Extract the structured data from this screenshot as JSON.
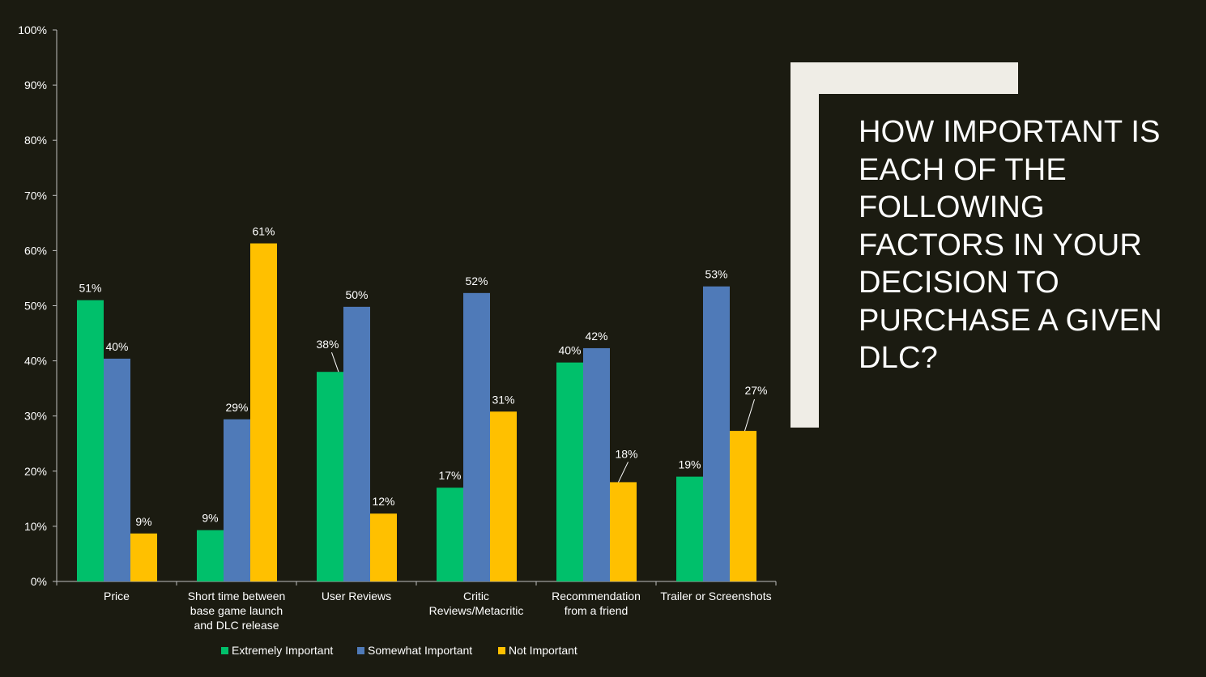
{
  "slide": {
    "title": "HOW IMPORTANT IS EACH OF THE FOLLOWING FACTORS IN YOUR DECISION TO PURCHASE A GIVEN DLC?"
  },
  "colors": {
    "background": "#1b1b11",
    "frame": "#efede6",
    "extremely_important": "#00c06b",
    "somewhat_important": "#4f7ab8",
    "not_important": "#ffc000",
    "axis": "#bfbfbf",
    "text": "#ffffff"
  },
  "chart_data": {
    "type": "bar",
    "title": "",
    "xlabel": "",
    "ylabel": "",
    "ylim": [
      0,
      100
    ],
    "y_ticks": [
      "0%",
      "10%",
      "20%",
      "30%",
      "40%",
      "50%",
      "60%",
      "70%",
      "80%",
      "90%",
      "100%"
    ],
    "grid": false,
    "legend_position": "bottom",
    "categories": [
      "Price",
      "Short time between base game launch and DLC release",
      "User Reviews",
      "Critic Reviews/Metacritic",
      "Recommendation from a friend",
      "Trailer or Screenshots"
    ],
    "category_label_lines": [
      [
        "Price"
      ],
      [
        "Short time between",
        "base game launch",
        "and DLC release"
      ],
      [
        "User Reviews"
      ],
      [
        "Critic",
        "Reviews/Metacritic"
      ],
      [
        "Recommendation",
        "from a friend"
      ],
      [
        "Trailer or Screenshots"
      ]
    ],
    "series": [
      {
        "name": "Extremely Important",
        "color": "#00c06b",
        "values": [
          51,
          9.3,
          38,
          17,
          39.7,
          19
        ],
        "labels": [
          "51%",
          "9%",
          "38%",
          "17%",
          "40%",
          "19%"
        ]
      },
      {
        "name": "Somewhat Important",
        "color": "#4f7ab8",
        "values": [
          40.4,
          29.4,
          49.8,
          52.3,
          42.3,
          53.5
        ],
        "labels": [
          "40%",
          "29%",
          "50%",
          "52%",
          "42%",
          "53%"
        ]
      },
      {
        "name": "Not Important",
        "color": "#ffc000",
        "values": [
          8.7,
          61.3,
          12.3,
          30.8,
          18,
          27.3
        ],
        "labels": [
          "9%",
          "61%",
          "12%",
          "31%",
          "18%",
          "27%"
        ]
      }
    ]
  }
}
